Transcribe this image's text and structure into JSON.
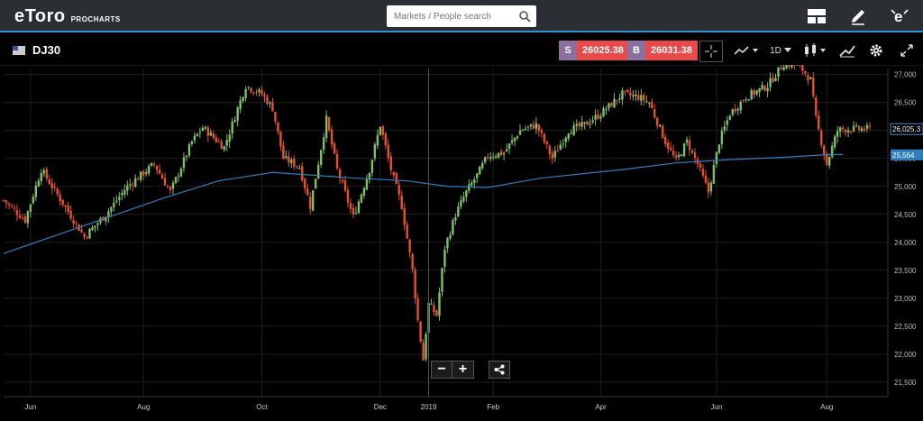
{
  "app": {
    "brand": "eToro",
    "product": "PROCHARTS"
  },
  "search": {
    "placeholder": "Markets / People search"
  },
  "top_icons": [
    "layout-icon",
    "draw-pencil-icon",
    "etoro-profile-icon"
  ],
  "instrument": {
    "symbol": "DJ30"
  },
  "sell": {
    "label": "S",
    "price": "26025.38"
  },
  "buy": {
    "label": "B",
    "price": "26031.38"
  },
  "toolbar": {
    "interval": "1D"
  },
  "price_labels": {
    "current": "26,025.3",
    "ma": "25,564"
  },
  "colors": {
    "up": "#7fbf6a",
    "down": "#e8502f",
    "ma_line": "#2f7fc0",
    "accent": "#2f8fd8"
  },
  "chart_data": {
    "type": "candlestick",
    "title": "",
    "ylabel": "",
    "ylim": [
      21500,
      27300
    ],
    "y_ticks": [
      "27,000",
      "26,500",
      "26,000",
      "25,500",
      "25,000",
      "24,500",
      "24,000",
      "23,500",
      "23,000",
      "22,500",
      "22,000",
      "21,500"
    ],
    "x_ticks": [
      "Jun",
      "Aug",
      "Oct",
      "Dec",
      "2019",
      "Feb",
      "Apr",
      "Jun",
      "Aug"
    ],
    "x_tick_values": [
      10,
      52,
      96,
      140,
      158,
      182,
      222,
      265,
      306
    ],
    "x_range": [
      0,
      322
    ],
    "series": [
      {
        "kind": "close_path",
        "points": [
          [
            0,
            24750
          ],
          [
            8,
            24400
          ],
          [
            14,
            25300
          ],
          [
            22,
            24700
          ],
          [
            30,
            24100
          ],
          [
            38,
            24500
          ],
          [
            46,
            25000
          ],
          [
            56,
            25400
          ],
          [
            62,
            24900
          ],
          [
            70,
            25800
          ],
          [
            74,
            26050
          ],
          [
            82,
            25700
          ],
          [
            90,
            26800
          ],
          [
            96,
            26650
          ],
          [
            100,
            26400
          ],
          [
            104,
            25500
          ],
          [
            110,
            25350
          ],
          [
            114,
            24650
          ],
          [
            120,
            26200
          ],
          [
            124,
            25300
          ],
          [
            130,
            24450
          ],
          [
            136,
            25300
          ],
          [
            140,
            26100
          ],
          [
            144,
            25300
          ],
          [
            148,
            24650
          ],
          [
            152,
            23500
          ],
          [
            154,
            22600
          ],
          [
            156,
            21900
          ],
          [
            158,
            22900
          ],
          [
            161,
            22700
          ],
          [
            164,
            23900
          ],
          [
            168,
            24500
          ],
          [
            172,
            24900
          ],
          [
            176,
            25200
          ],
          [
            180,
            25550
          ],
          [
            186,
            25600
          ],
          [
            192,
            26000
          ],
          [
            198,
            26100
          ],
          [
            204,
            25500
          ],
          [
            210,
            26000
          ],
          [
            216,
            26100
          ],
          [
            222,
            26300
          ],
          [
            230,
            26650
          ],
          [
            236,
            26600
          ],
          [
            240,
            26500
          ],
          [
            246,
            25800
          ],
          [
            250,
            25450
          ],
          [
            254,
            25800
          ],
          [
            258,
            25400
          ],
          [
            262,
            24900
          ],
          [
            266,
            25800
          ],
          [
            270,
            26300
          ],
          [
            276,
            26600
          ],
          [
            284,
            26800
          ],
          [
            290,
            27200
          ],
          [
            296,
            27150
          ],
          [
            300,
            26900
          ],
          [
            302,
            26200
          ],
          [
            306,
            25400
          ],
          [
            310,
            26000
          ],
          [
            312,
            26025
          ]
        ]
      },
      {
        "kind": "moving_average",
        "name": "",
        "points": [
          [
            0,
            23800
          ],
          [
            30,
            24300
          ],
          [
            60,
            24800
          ],
          [
            80,
            25100
          ],
          [
            100,
            25250
          ],
          [
            130,
            25150
          ],
          [
            150,
            25100
          ],
          [
            165,
            25000
          ],
          [
            180,
            24980
          ],
          [
            200,
            25150
          ],
          [
            230,
            25300
          ],
          [
            250,
            25420
          ],
          [
            270,
            25480
          ],
          [
            290,
            25520
          ],
          [
            305,
            25564
          ],
          [
            312,
            25570
          ]
        ]
      }
    ]
  }
}
